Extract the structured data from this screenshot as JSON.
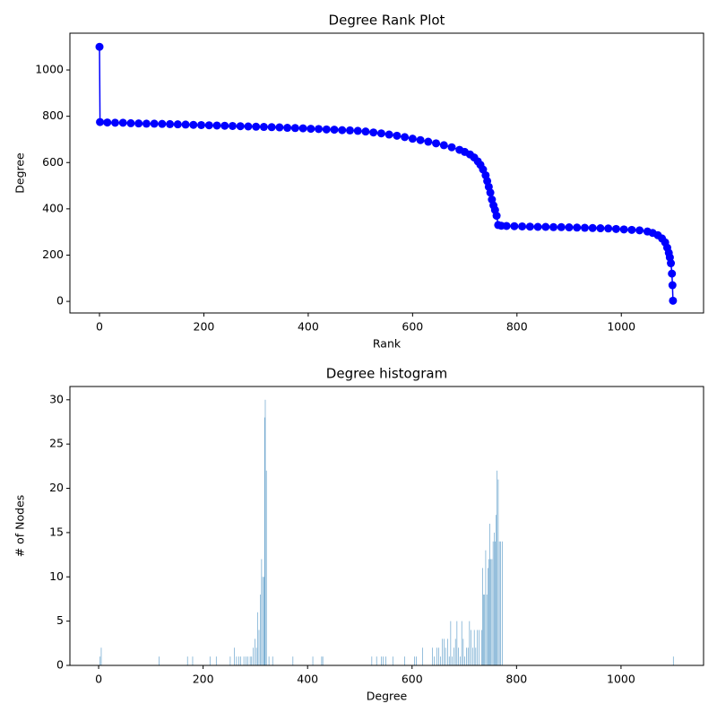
{
  "chart_data": [
    {
      "type": "line",
      "title": "Degree Rank Plot",
      "x_label": "Rank",
      "y_label": "Degree",
      "color": "blue",
      "marker": "o",
      "x": [
        0,
        1,
        15,
        30,
        45,
        60,
        75,
        90,
        105,
        120,
        135,
        150,
        165,
        180,
        195,
        210,
        225,
        240,
        255,
        270,
        285,
        300,
        315,
        330,
        345,
        360,
        375,
        390,
        405,
        420,
        435,
        450,
        465,
        480,
        495,
        510,
        525,
        540,
        555,
        570,
        585,
        600,
        615,
        630,
        645,
        660,
        675,
        690,
        700,
        710,
        718,
        725,
        730,
        735,
        740,
        743,
        746,
        749,
        752,
        755,
        758,
        761,
        764,
        770,
        780,
        795,
        810,
        825,
        840,
        855,
        870,
        885,
        900,
        915,
        930,
        945,
        960,
        975,
        990,
        1005,
        1020,
        1035,
        1050,
        1060,
        1070,
        1078,
        1084,
        1088,
        1091,
        1093,
        1095,
        1097,
        1098,
        1099
      ],
      "values": [
        1100,
        775,
        773,
        772,
        772,
        770,
        769,
        768,
        768,
        767,
        766,
        765,
        764,
        763,
        762,
        761,
        760,
        759,
        758,
        757,
        756,
        755,
        754,
        753,
        752,
        750,
        749,
        748,
        746,
        745,
        743,
        742,
        740,
        739,
        737,
        734,
        730,
        726,
        721,
        716,
        710,
        703,
        697,
        690,
        683,
        675,
        666,
        655,
        646,
        635,
        622,
        605,
        590,
        570,
        545,
        520,
        495,
        470,
        440,
        415,
        395,
        370,
        330,
        327,
        326,
        325,
        324,
        323,
        322,
        322,
        321,
        321,
        320,
        319,
        318,
        317,
        316,
        315,
        313,
        311,
        309,
        307,
        302,
        296,
        286,
        272,
        255,
        232,
        210,
        190,
        165,
        120,
        70,
        3
      ],
      "xlim": [
        -56.7,
        1157.6
      ],
      "ylim": [
        -50,
        1159
      ],
      "xticks": [
        0,
        200,
        400,
        600,
        800,
        1000
      ],
      "yticks": [
        0,
        200,
        400,
        600,
        800,
        1000
      ]
    },
    {
      "type": "bar",
      "title": "Degree histogram",
      "x_label": "Degree",
      "y_label": "# of Nodes",
      "color": "#1f77b4",
      "x": [
        3,
        5,
        116,
        170,
        180,
        213,
        225,
        252,
        260,
        264,
        268,
        272,
        278,
        282,
        286,
        290,
        293,
        296,
        299,
        302,
        304,
        307,
        310,
        312,
        314,
        316,
        318,
        319,
        321,
        326,
        333,
        372,
        410,
        427,
        429,
        523,
        532,
        541,
        545,
        550,
        563,
        586,
        605,
        608,
        620,
        639,
        642,
        648,
        651,
        654,
        658,
        661,
        664,
        668,
        671,
        674,
        677,
        680,
        683,
        686,
        689,
        692,
        695,
        698,
        701,
        704,
        707,
        710,
        713,
        716,
        719,
        722,
        725,
        728,
        733,
        735,
        737,
        739,
        741,
        743,
        745,
        747,
        749,
        751,
        753,
        755,
        757,
        759,
        761,
        763,
        765,
        767,
        769,
        773,
        1100
      ],
      "values": [
        1,
        2,
        1,
        1,
        1,
        1,
        1,
        1,
        2,
        1,
        1,
        1,
        1,
        1,
        1,
        1,
        1,
        2,
        3,
        2,
        6,
        4,
        8,
        12,
        10,
        10,
        28,
        30,
        22,
        1,
        1,
        1,
        1,
        1,
        1,
        1,
        1,
        1,
        1,
        1,
        1,
        1,
        1,
        1,
        2,
        2,
        1,
        2,
        2,
        1,
        3,
        3,
        2,
        3,
        1,
        5,
        1,
        2,
        3,
        5,
        2,
        1,
        5,
        3,
        1,
        2,
        2,
        5,
        4,
        2,
        4,
        2,
        4,
        4,
        4,
        11,
        8,
        8,
        13,
        8,
        11,
        12,
        16,
        12,
        12,
        14,
        15,
        14,
        17,
        22,
        21,
        14,
        14,
        14,
        1
      ],
      "xlim": [
        -55,
        1158
      ],
      "ylim": [
        0,
        31.5
      ],
      "xticks": [
        0,
        200,
        400,
        600,
        800,
        1000
      ],
      "yticks": [
        0,
        5,
        10,
        15,
        20,
        25,
        30
      ]
    }
  ]
}
